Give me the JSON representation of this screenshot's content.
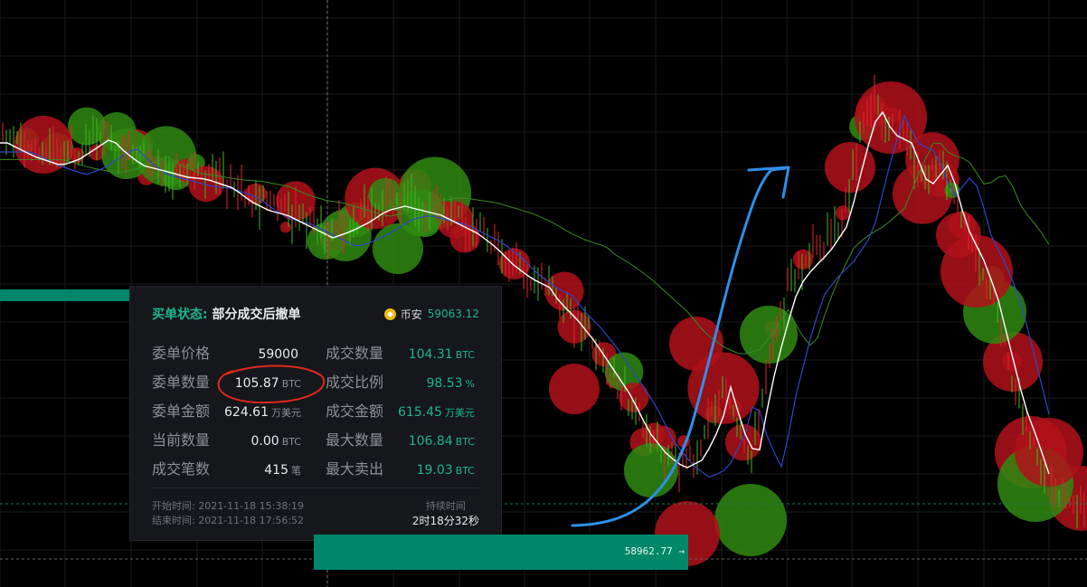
{
  "chart_data": {
    "type": "candlestick",
    "last_price": "58962.77 →"
  },
  "tooltip": {
    "status_label": "买单状态:",
    "status_value": "部分成交后撤单",
    "exchange": "币安",
    "exchange_price": "59063.12",
    "rows": [
      {
        "left_key": "委单价格",
        "left_value": "59000",
        "left_unit": "",
        "right_key": "成交数量",
        "right_value": "104.31",
        "right_unit": "BTC"
      },
      {
        "left_key": "委单数量",
        "left_value": "105.87",
        "left_unit": "BTC",
        "right_key": "成交比例",
        "right_value": "98.53",
        "right_unit": "%"
      },
      {
        "left_key": "委单金额",
        "left_value": "624.61",
        "left_unit": "万美元",
        "right_key": "成交金额",
        "right_value": "615.45",
        "right_unit": "万美元"
      },
      {
        "left_key": "当前数量",
        "left_value": "0.00",
        "left_unit": "BTC",
        "right_key": "最大数量",
        "right_value": "106.84",
        "right_unit": "BTC"
      },
      {
        "left_key": "成交笔数",
        "left_value": "415",
        "left_unit": "笔",
        "right_key": "最大卖出",
        "right_value": "19.03",
        "right_unit": "BTC"
      }
    ],
    "start_time": "开始时间:  2021-11-18 15:38:19",
    "end_time": "结束时间:  2021-11-18 17:56:52",
    "duration_label": "持续时间",
    "duration_value": "2时18分32秒"
  },
  "colors": {
    "background": "#000000",
    "up": "#2f8a12",
    "down": "#b0111a",
    "accent": "#00876a",
    "ma_white": "#ffffff",
    "ma_blue": "#2f45c8",
    "ma_green": "#3c8a23",
    "annotation_red": "#e0281c",
    "annotation_blue": "#2f8fe8"
  }
}
